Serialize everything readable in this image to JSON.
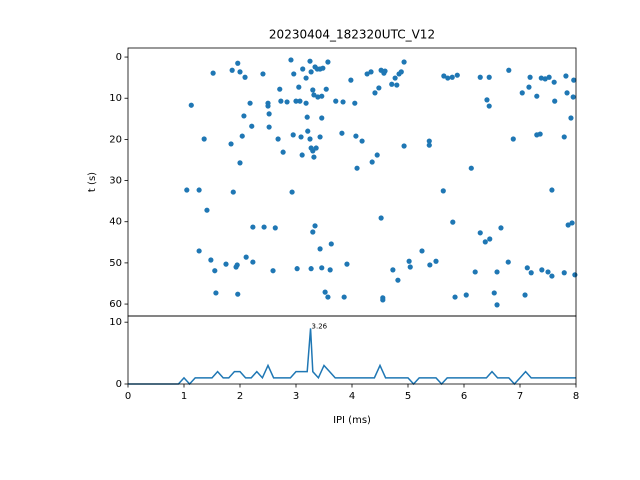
{
  "chart_data": [
    {
      "type": "scatter",
      "title": "20230404_182320UTC_V12",
      "ylabel": "t (s)",
      "color": "#1f77b4",
      "xlim": [
        0,
        8
      ],
      "ylim": [
        62.9,
        -2.2
      ],
      "yticks": [
        0,
        10,
        20,
        30,
        40,
        50,
        60
      ],
      "x": [
        1.52,
        1.86,
        1.96,
        2.0,
        2.09,
        2.41,
        2.91,
        2.96,
        3.05,
        3.12,
        3.18,
        3.25,
        3.27,
        3.34,
        3.38,
        3.43,
        3.48,
        3.57,
        3.98,
        4.27,
        4.34,
        4.52,
        4.57,
        4.59,
        4.77,
        4.84,
        4.93,
        4.88,
        5.64,
        5.71,
        5.79,
        5.88,
        6.29,
        6.45,
        6.8,
        7.18,
        7.38,
        7.45,
        7.52,
        7.61,
        7.82,
        7.96,
        1.13,
        2.07,
        2.18,
        2.5,
        2.5,
        2.52,
        2.52,
        2.71,
        2.73,
        2.84,
        3.0,
        3.07,
        3.18,
        3.3,
        3.32,
        3.39,
        3.46,
        3.54,
        3.71,
        3.84,
        4.05,
        4.41,
        4.48,
        4.71,
        4.8,
        6.41,
        6.45,
        7.04,
        7.16,
        7.3,
        7.62,
        7.84,
        7.95,
        7.91,
        1.36,
        1.84,
        2.04,
        2.21,
        2.0,
        2.68,
        2.77,
        2.95,
        3.09,
        3.11,
        3.2,
        3.21,
        3.25,
        3.27,
        3.36,
        3.32,
        3.3,
        3.43,
        3.46,
        3.82,
        4.07,
        4.09,
        4.18,
        4.36,
        4.45,
        4.93,
        5.38,
        5.38,
        6.13,
        6.88,
        7.3,
        7.36,
        7.79,
        1.05,
        1.27,
        1.41,
        1.88,
        2.93,
        2.23,
        2.43,
        2.63,
        3.3,
        3.34,
        4.52,
        5.63,
        5.8,
        7.57,
        7.86,
        7.93,
        6.29,
        6.38,
        6.46,
        6.66,
        1.27,
        1.48,
        1.55,
        1.57,
        1.75,
        1.93,
        1.95,
        1.96,
        2.11,
        2.23,
        2.59,
        3.02,
        3.27,
        3.43,
        3.63,
        3.52,
        3.57,
        3.61,
        3.46,
        3.86,
        3.91,
        4.55,
        4.55,
        4.73,
        4.82,
        5.02,
        5.04,
        5.25,
        5.39,
        5.5,
        5.84,
        6.04,
        6.2,
        6.54,
        6.59,
        6.59,
        6.79,
        7.09,
        7.13,
        7.2,
        7.39,
        7.5,
        7.57,
        7.79,
        7.98
      ],
      "values": [
        3.9,
        3.2,
        1.5,
        3.6,
        4.9,
        4.1,
        0.7,
        4.1,
        7.3,
        2.9,
        5.1,
        1,
        3.6,
        2.4,
        2.9,
        2.9,
        2.7,
        1.2,
        5.6,
        4.1,
        3.6,
        3.2,
        3.9,
        3.4,
        5.1,
        4.1,
        1.2,
        3.6,
        4.6,
        5.1,
        4.9,
        4.4,
        4.9,
        4.9,
        3.2,
        4.9,
        5.1,
        5.3,
        4.9,
        6.1,
        4.6,
        5.6,
        11.7,
        14.3,
        11.2,
        11.2,
        11.9,
        13.8,
        17,
        7.8,
        10.7,
        10.9,
        10.7,
        10.7,
        11.2,
        8,
        9.2,
        9.7,
        9.5,
        7.8,
        10.7,
        10.9,
        11.2,
        8.7,
        7.5,
        6.6,
        6.8,
        10.4,
        11.9,
        8.7,
        7.3,
        9.5,
        10.7,
        8.7,
        9.7,
        14.8,
        19.9,
        21.1,
        19.2,
        16.8,
        25.7,
        19.9,
        23.1,
        18.9,
        19.4,
        23.8,
        14.6,
        18,
        19.9,
        22.1,
        22.1,
        24.3,
        22.8,
        19.4,
        14.8,
        18.5,
        19.2,
        27,
        20.4,
        25.5,
        23.8,
        21.6,
        20.4,
        21.4,
        27,
        19.9,
        18.9,
        18.7,
        19.4,
        32.3,
        32.3,
        37.2,
        32.8,
        32.8,
        41.3,
        41.3,
        41.5,
        42.5,
        41,
        39.1,
        32.5,
        40.1,
        32.3,
        40.8,
        40.3,
        42.7,
        44.9,
        44.2,
        41.5,
        47.1,
        49.3,
        51.9,
        57.3,
        50.3,
        51,
        50.5,
        57.6,
        48.6,
        49.8,
        51.9,
        51.4,
        51.4,
        46.6,
        45.4,
        57.1,
        58.3,
        51.7,
        51.2,
        58.3,
        50.3,
        58.5,
        59,
        51.7,
        54.2,
        49.6,
        51,
        47.1,
        50.5,
        49.6,
        58.3,
        57.8,
        52.2,
        57.3,
        60.2,
        52.2,
        49.8,
        57.8,
        51.2,
        52.4,
        51.7,
        52.2,
        53.2,
        52.4,
        52.9
      ]
    },
    {
      "type": "line",
      "xlabel": "IPI (ms)",
      "color": "#1f77b4",
      "annotation": "3.26",
      "xlim": [
        0,
        8
      ],
      "ylim": [
        0,
        11
      ],
      "xticks": [
        0,
        1,
        2,
        3,
        4,
        5,
        6,
        7,
        8
      ],
      "yticks": [
        0,
        10
      ],
      "x": [
        0,
        0.1,
        0.2,
        0.3,
        0.4,
        0.5,
        0.6,
        0.7,
        0.8,
        0.9,
        1.0,
        1.1,
        1.2,
        1.3,
        1.4,
        1.5,
        1.6,
        1.7,
        1.8,
        1.9,
        2.0,
        2.1,
        2.2,
        2.3,
        2.4,
        2.5,
        2.6,
        2.7,
        2.8,
        2.9,
        3.0,
        3.1,
        3.2,
        3.26,
        3.3,
        3.4,
        3.5,
        3.6,
        3.7,
        3.8,
        3.9,
        4.0,
        4.1,
        4.2,
        4.3,
        4.4,
        4.5,
        4.6,
        4.7,
        4.8,
        4.9,
        5.0,
        5.1,
        5.2,
        5.3,
        5.4,
        5.5,
        5.6,
        5.7,
        5.8,
        5.9,
        6.0,
        6.1,
        6.2,
        6.3,
        6.4,
        6.5,
        6.6,
        6.7,
        6.8,
        6.9,
        7.0,
        7.1,
        7.2,
        7.3,
        7.4,
        7.5,
        7.6,
        7.7,
        7.8,
        7.9,
        8.0
      ],
      "values": [
        0,
        0,
        0,
        0,
        0,
        0,
        0,
        0,
        0,
        0,
        1,
        0,
        1,
        1,
        1,
        1,
        2,
        1,
        1,
        2,
        2,
        1,
        1,
        2,
        1,
        3,
        1,
        1,
        1,
        1,
        2,
        2,
        2,
        9,
        2,
        1,
        3,
        2,
        1,
        1,
        1,
        1,
        1,
        1,
        1,
        1,
        3,
        1,
        1,
        1,
        1,
        1,
        0,
        1,
        1,
        1,
        1,
        0,
        1,
        1,
        1,
        1,
        1,
        1,
        1,
        1,
        2,
        1,
        1,
        1,
        0,
        1,
        2,
        1,
        1,
        1,
        1,
        1,
        1,
        1,
        1,
        1
      ]
    }
  ]
}
